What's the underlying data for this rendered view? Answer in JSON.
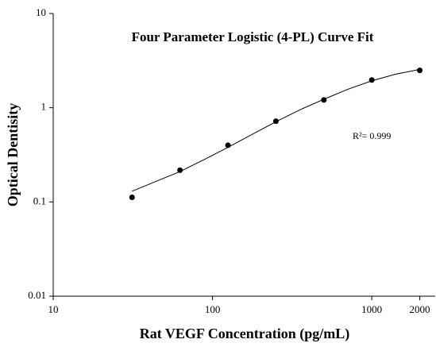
{
  "chart_data": {
    "type": "scatter",
    "title": "Four Parameter Logistic (4-PL) Curve Fit",
    "x_label": "Rat VEGF Concentration (pg/mL)",
    "y_label": "Optical Dentisity",
    "annotation": "R²= 0.999",
    "x_scale": "log",
    "y_scale": "log",
    "xlim": [
      10,
      2500
    ],
    "ylim": [
      0.01,
      10
    ],
    "xticks": [
      10,
      100,
      1000,
      2000
    ],
    "yticks": [
      0.01,
      0.1,
      1,
      10
    ],
    "series": [
      {
        "type": "scatter",
        "color": "#000000",
        "x": [
          31.25,
          62.5,
          125,
          250,
          500,
          1000,
          2000
        ],
        "values": [
          0.112,
          0.217,
          0.4,
          0.72,
          1.21,
          1.97,
          2.49
        ]
      },
      {
        "type": "line",
        "color": "#000000",
        "x": [
          31.25,
          44,
          62.5,
          88,
          125,
          177,
          250,
          354,
          500,
          707,
          1000,
          1414,
          2000
        ],
        "values": [
          0.13,
          0.165,
          0.21,
          0.28,
          0.38,
          0.52,
          0.71,
          0.95,
          1.23,
          1.57,
          1.93,
          2.27,
          2.55
        ]
      }
    ]
  }
}
